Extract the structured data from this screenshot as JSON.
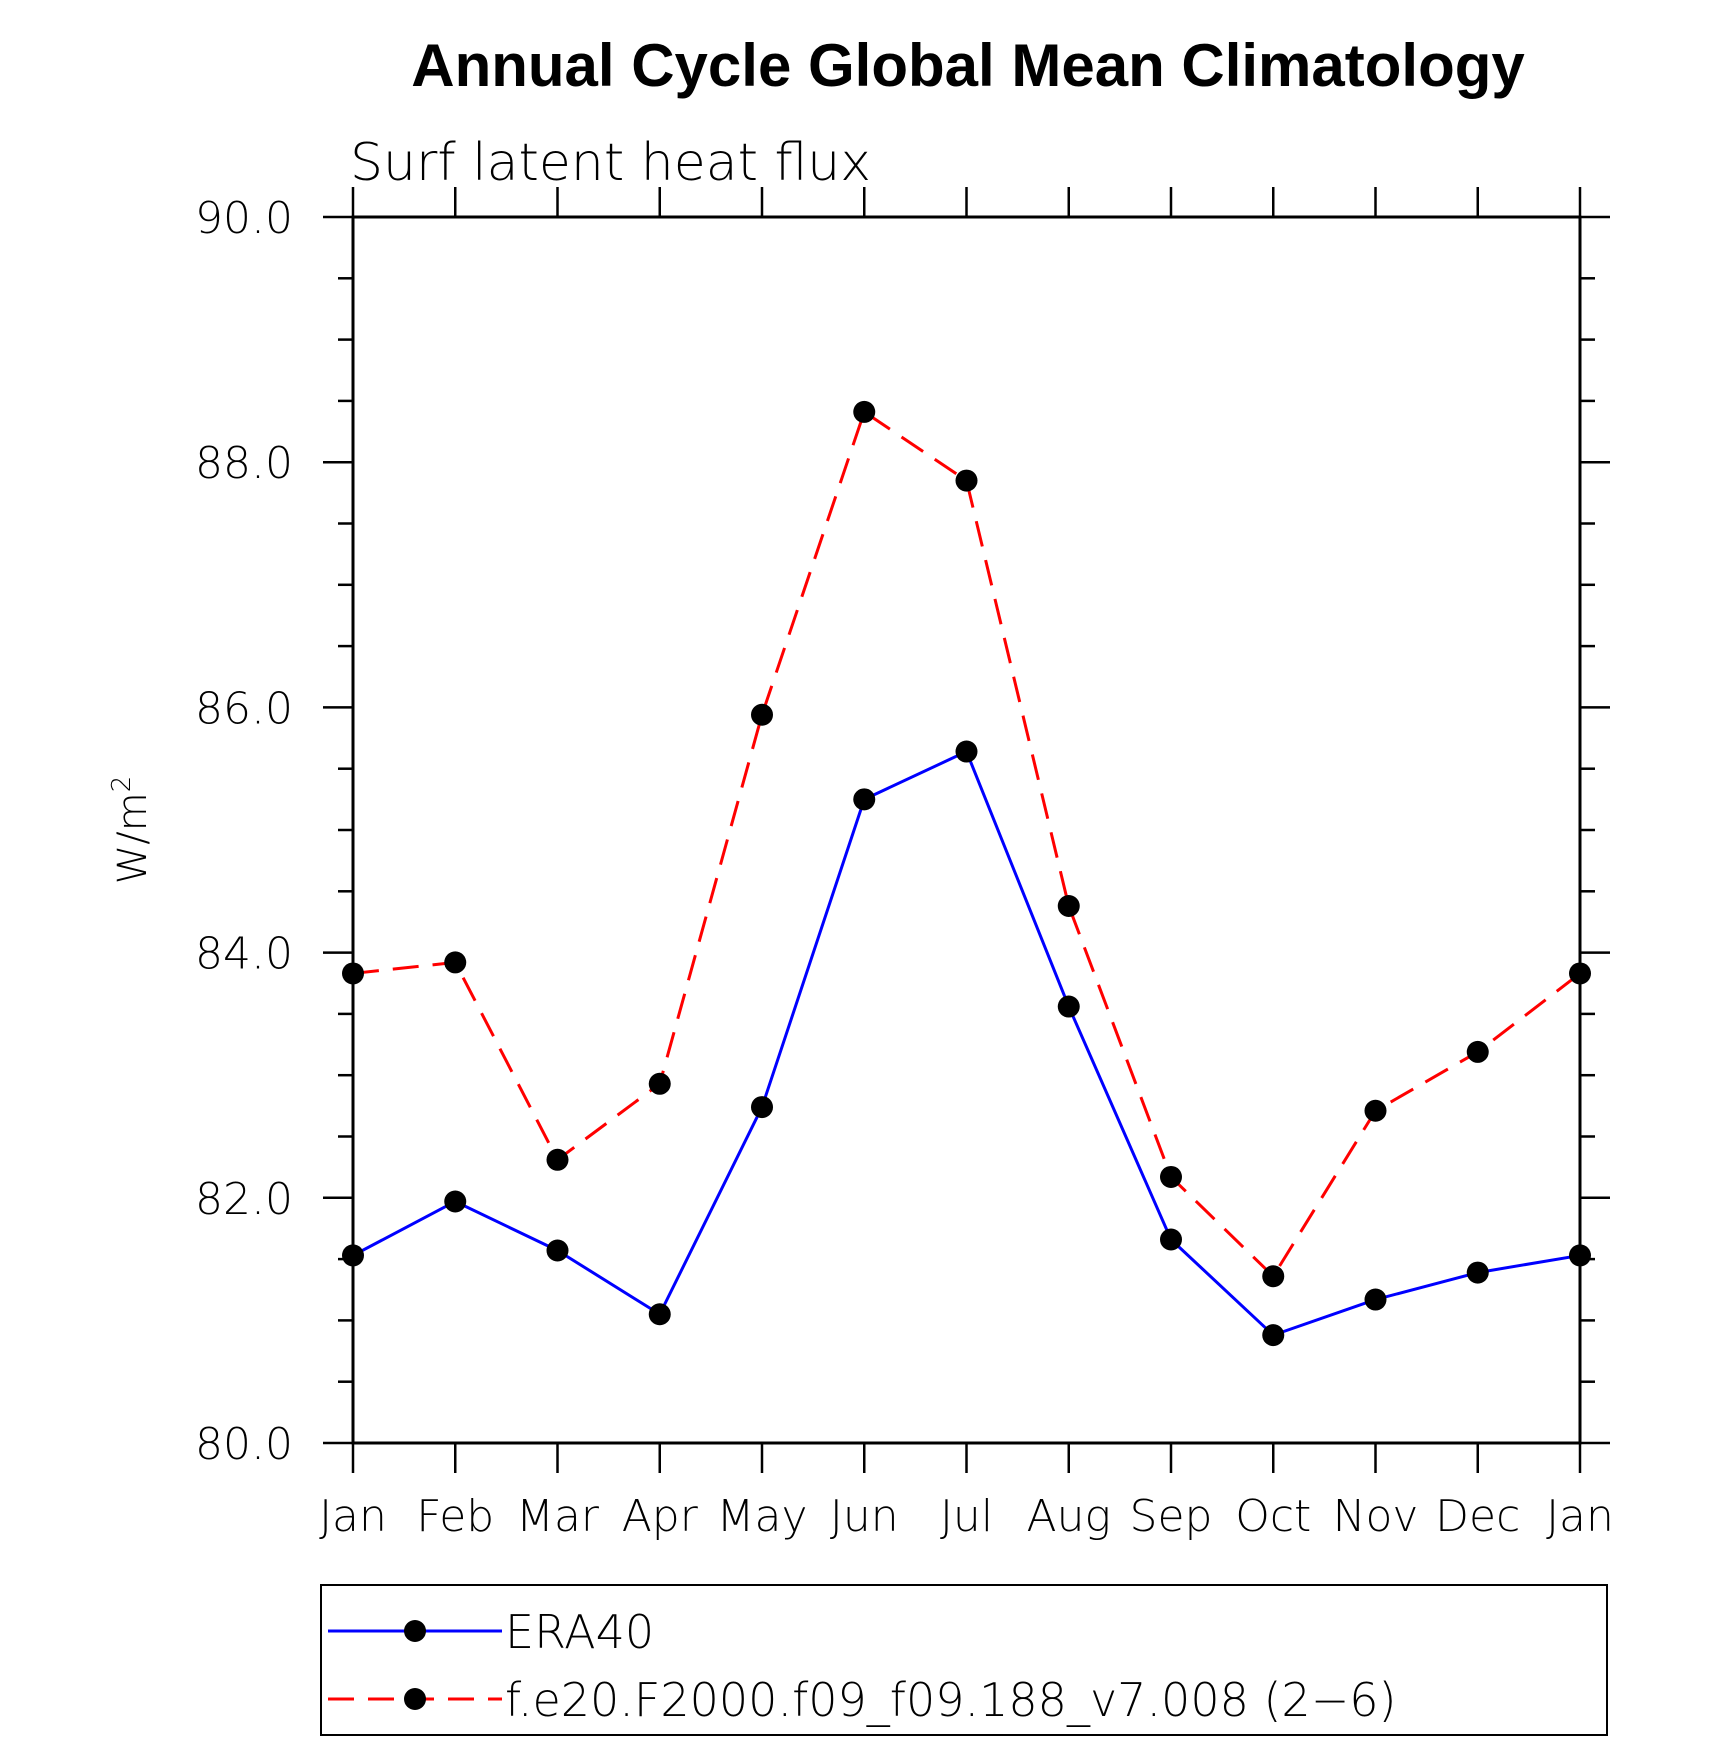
{
  "chart_data": {
    "type": "line",
    "title": "Annual Cycle Global Mean Climatology",
    "subtitle": "Surf latent heat flux",
    "ylabel_base": "W/m",
    "ylabel_sup": "2",
    "xlabel": "",
    "categories": [
      "Jan",
      "Feb",
      "Mar",
      "Apr",
      "May",
      "Jun",
      "Jul",
      "Aug",
      "Sep",
      "Oct",
      "Nov",
      "Dec",
      "Jan"
    ],
    "ylim": [
      80.0,
      90.0
    ],
    "yticks": [
      80.0,
      82.0,
      84.0,
      86.0,
      88.0,
      90.0
    ],
    "ytick_labels": [
      "80.0",
      "82.0",
      "84.0",
      "86.0",
      "88.0",
      "90.0"
    ],
    "grid": false,
    "legend_position": "bottom",
    "series": [
      {
        "name": "ERA40",
        "color": "#0000ff",
        "dashed": false,
        "marker_color": "#000000",
        "values": [
          81.53,
          81.97,
          81.57,
          81.05,
          82.74,
          85.25,
          85.64,
          83.56,
          81.66,
          80.88,
          81.17,
          81.39,
          81.53
        ]
      },
      {
        "name": "f.e20.F2000.f09_f09.188_v7.008 (2−6)",
        "color": "#ff0000",
        "dashed": true,
        "marker_color": "#000000",
        "values": [
          83.83,
          83.92,
          82.31,
          82.93,
          85.94,
          88.41,
          87.85,
          84.38,
          82.17,
          81.36,
          82.71,
          83.19,
          83.83
        ]
      }
    ]
  }
}
